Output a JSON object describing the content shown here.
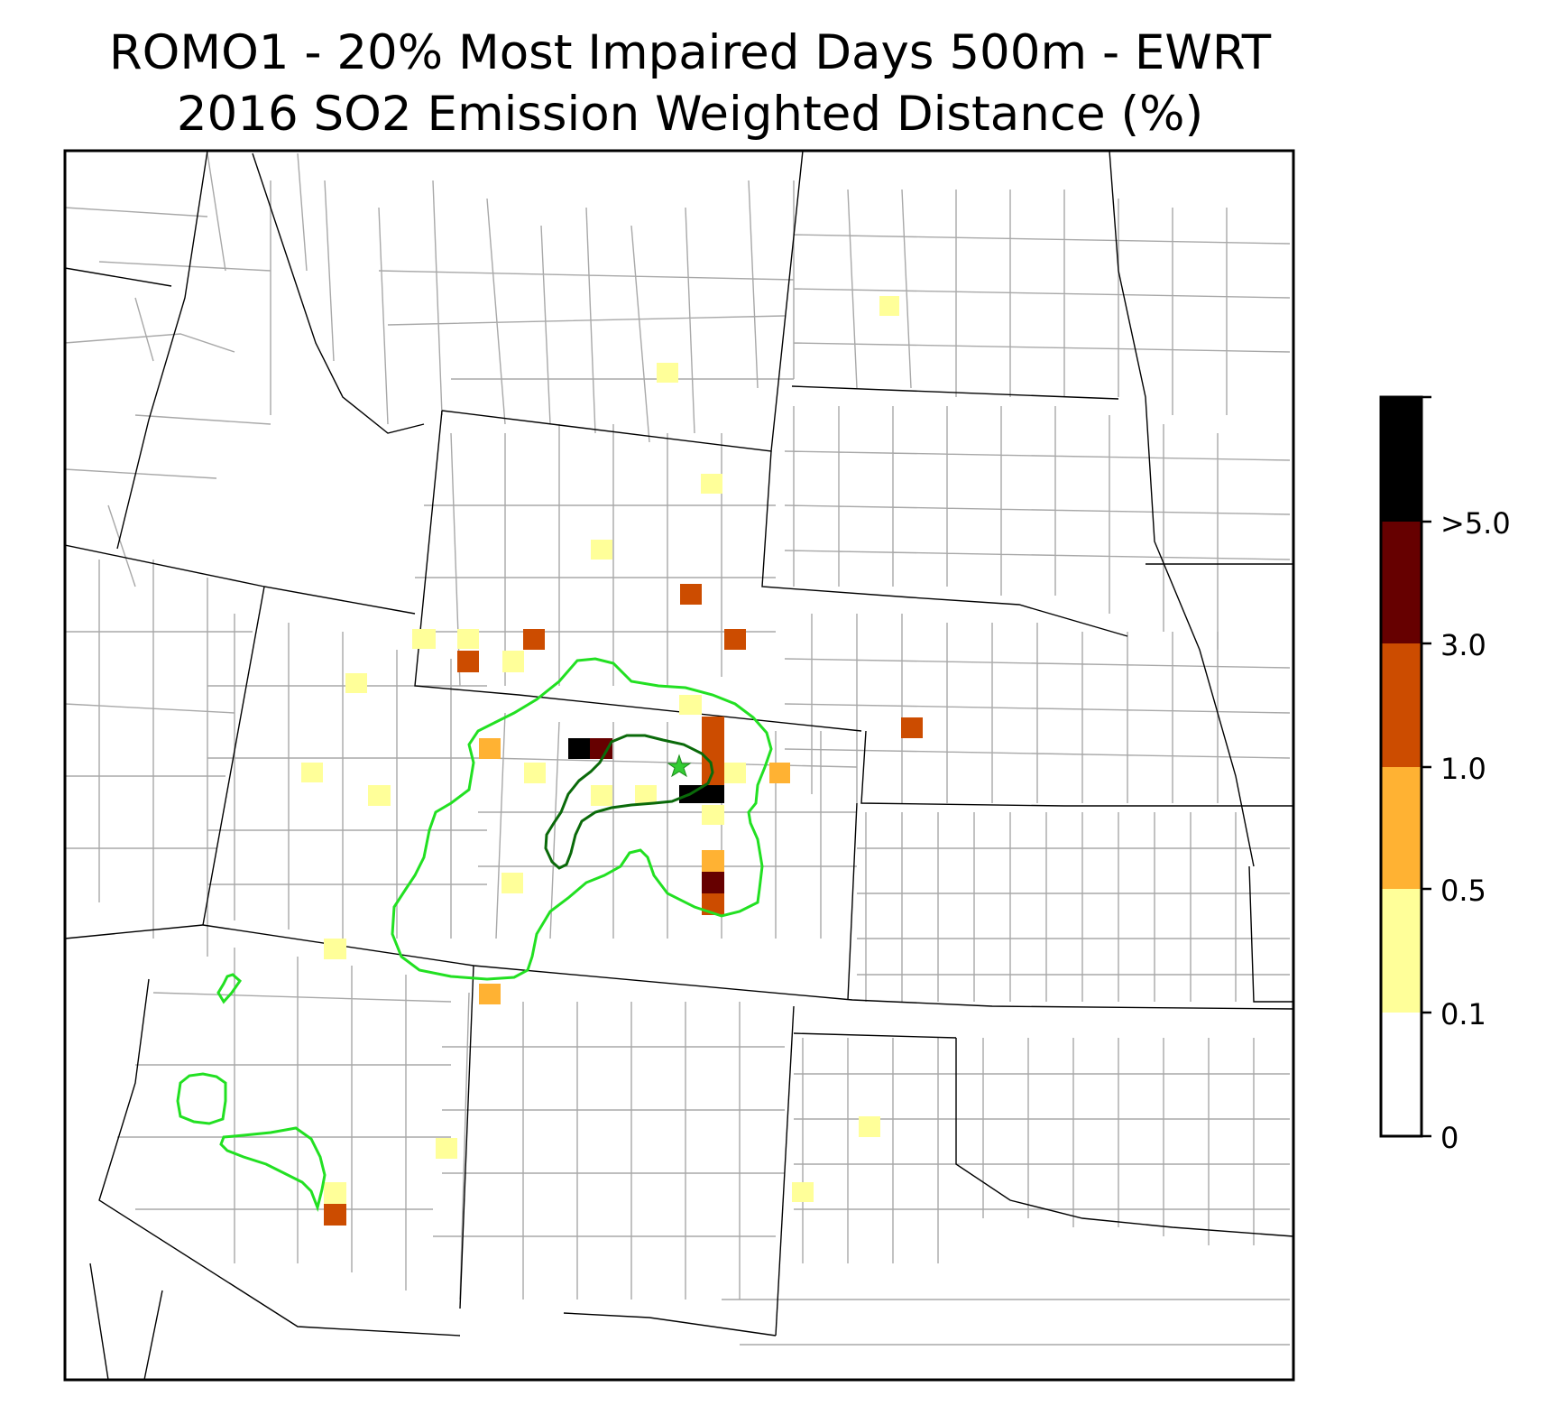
{
  "title": {
    "line1": "ROMO1 - 20% Most Impaired Days 500m - EWRT",
    "line2": "2016 SO2 Emission Weighted Distance (%)"
  },
  "colors": {
    "bin_0": "#ffffff",
    "bin_1": "#ffff99",
    "bin_2": "#ffb233",
    "bin_3": "#cc4c00",
    "bin_4": "#660000",
    "bin_5": "#000000",
    "state_border": "#000000",
    "county_border": "#a8a8a8",
    "contour_outer": "#22e022",
    "contour_inner": "#0a6a0a",
    "site_marker": "#33cc33"
  },
  "colorbar": {
    "labels": [
      ">5.0",
      "3.0",
      "1.0",
      "0.5",
      "0.1",
      "0"
    ]
  },
  "site_marker": {
    "icon": "star-icon"
  }
}
